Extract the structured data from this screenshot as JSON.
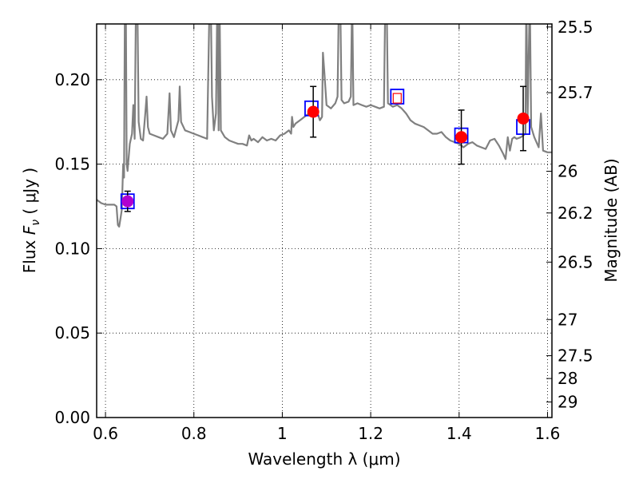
{
  "chart_data": {
    "type": "scatter",
    "title": "",
    "xlabel": "Wavelength  λ (μm)",
    "ylabel_prefix": "Flux  ",
    "ylabel_var": "F",
    "ylabel_sub": "ν",
    "ylabel_suffix": "  ( μJy )",
    "ylabel_right": "Magnitude (AB)",
    "xlim": [
      0.58,
      1.61
    ],
    "ylim": [
      0.0,
      0.233
    ],
    "x_ticks": [
      {
        "value": 0.6,
        "label": "0.6"
      },
      {
        "value": 0.8,
        "label": "0.8"
      },
      {
        "value": 1.0,
        "label": "1"
      },
      {
        "value": 1.2,
        "label": "1.2"
      },
      {
        "value": 1.4,
        "label": "1.4"
      },
      {
        "value": 1.6,
        "label": "1.6"
      }
    ],
    "y_ticks": [
      {
        "value": 0.0,
        "label": "0.00"
      },
      {
        "value": 0.05,
        "label": "0.05"
      },
      {
        "value": 0.1,
        "label": "0.10"
      },
      {
        "value": 0.15,
        "label": "0.15"
      },
      {
        "value": 0.2,
        "label": "0.20"
      }
    ],
    "right_ticks": [
      {
        "flux": 0.2312,
        "label": "25.5"
      },
      {
        "flux": 0.1923,
        "label": "25.7"
      },
      {
        "flux": 0.1458,
        "label": "26"
      },
      {
        "flux": 0.1211,
        "label": "26.2"
      },
      {
        "flux": 0.092,
        "label": "26.5"
      },
      {
        "flux": 0.058,
        "label": "27"
      },
      {
        "flux": 0.0366,
        "label": "27.5"
      },
      {
        "flux": 0.0231,
        "label": "28"
      },
      {
        "flux": 0.0092,
        "label": "29"
      }
    ],
    "grid": true,
    "colors": {
      "model": "#808080",
      "observed": "#ff0000",
      "observed_first": "#b000d0",
      "synthetic": "#0000ff",
      "errorbar": "#000000"
    },
    "series": [
      {
        "type": "line",
        "points": [
          [
            0.58,
            0.129
          ],
          [
            0.59,
            0.127
          ],
          [
            0.6,
            0.126
          ],
          [
            0.61,
            0.126
          ],
          [
            0.62,
            0.126
          ],
          [
            0.625,
            0.125
          ],
          [
            0.628,
            0.114
          ],
          [
            0.631,
            0.113
          ],
          [
            0.634,
            0.118
          ],
          [
            0.637,
            0.123
          ],
          [
            0.64,
            0.15
          ],
          [
            0.642,
            0.142
          ],
          [
            0.644,
            0.25
          ],
          [
            0.646,
            0.25
          ],
          [
            0.648,
            0.15
          ],
          [
            0.65,
            0.146
          ],
          [
            0.655,
            0.162
          ],
          [
            0.66,
            0.168
          ],
          [
            0.663,
            0.185
          ],
          [
            0.666,
            0.165
          ],
          [
            0.669,
            0.25
          ],
          [
            0.672,
            0.25
          ],
          [
            0.675,
            0.175
          ],
          [
            0.68,
            0.165
          ],
          [
            0.685,
            0.164
          ],
          [
            0.69,
            0.18
          ],
          [
            0.693,
            0.19
          ],
          [
            0.696,
            0.172
          ],
          [
            0.7,
            0.168
          ],
          [
            0.71,
            0.167
          ],
          [
            0.72,
            0.166
          ],
          [
            0.73,
            0.165
          ],
          [
            0.74,
            0.168
          ],
          [
            0.745,
            0.192
          ],
          [
            0.748,
            0.17
          ],
          [
            0.755,
            0.166
          ],
          [
            0.765,
            0.176
          ],
          [
            0.768,
            0.196
          ],
          [
            0.771,
            0.175
          ],
          [
            0.78,
            0.17
          ],
          [
            0.79,
            0.169
          ],
          [
            0.8,
            0.168
          ],
          [
            0.81,
            0.167
          ],
          [
            0.82,
            0.166
          ],
          [
            0.83,
            0.165
          ],
          [
            0.835,
            0.24
          ],
          [
            0.838,
            0.25
          ],
          [
            0.841,
            0.19
          ],
          [
            0.845,
            0.17
          ],
          [
            0.85,
            0.18
          ],
          [
            0.853,
            0.25
          ],
          [
            0.856,
            0.17
          ],
          [
            0.858,
            0.25
          ],
          [
            0.861,
            0.17
          ],
          [
            0.87,
            0.166
          ],
          [
            0.88,
            0.164
          ],
          [
            0.89,
            0.163
          ],
          [
            0.9,
            0.162
          ],
          [
            0.91,
            0.162
          ],
          [
            0.92,
            0.161
          ],
          [
            0.925,
            0.167
          ],
          [
            0.93,
            0.164
          ],
          [
            0.935,
            0.165
          ],
          [
            0.945,
            0.163
          ],
          [
            0.955,
            0.166
          ],
          [
            0.965,
            0.164
          ],
          [
            0.975,
            0.165
          ],
          [
            0.985,
            0.164
          ],
          [
            0.995,
            0.167
          ],
          [
            1.005,
            0.168
          ],
          [
            1.015,
            0.17
          ],
          [
            1.02,
            0.168
          ],
          [
            1.022,
            0.178
          ],
          [
            1.025,
            0.172
          ],
          [
            1.03,
            0.174
          ],
          [
            1.04,
            0.176
          ],
          [
            1.05,
            0.178
          ],
          [
            1.06,
            0.18
          ],
          [
            1.07,
            0.182
          ],
          [
            1.08,
            0.18
          ],
          [
            1.085,
            0.176
          ],
          [
            1.09,
            0.178
          ],
          [
            1.092,
            0.216
          ],
          [
            1.095,
            0.205
          ],
          [
            1.1,
            0.185
          ],
          [
            1.11,
            0.183
          ],
          [
            1.12,
            0.186
          ],
          [
            1.125,
            0.19
          ],
          [
            1.128,
            0.25
          ],
          [
            1.131,
            0.25
          ],
          [
            1.134,
            0.188
          ],
          [
            1.14,
            0.186
          ],
          [
            1.15,
            0.187
          ],
          [
            1.155,
            0.19
          ],
          [
            1.158,
            0.25
          ],
          [
            1.161,
            0.185
          ],
          [
            1.17,
            0.186
          ],
          [
            1.18,
            0.185
          ],
          [
            1.19,
            0.184
          ],
          [
            1.2,
            0.185
          ],
          [
            1.21,
            0.184
          ],
          [
            1.22,
            0.183
          ],
          [
            1.23,
            0.184
          ],
          [
            1.233,
            0.25
          ],
          [
            1.236,
            0.25
          ],
          [
            1.239,
            0.186
          ],
          [
            1.245,
            0.185
          ],
          [
            1.25,
            0.184
          ],
          [
            1.26,
            0.185
          ],
          [
            1.27,
            0.183
          ],
          [
            1.28,
            0.18
          ],
          [
            1.29,
            0.176
          ],
          [
            1.3,
            0.174
          ],
          [
            1.31,
            0.173
          ],
          [
            1.32,
            0.172
          ],
          [
            1.33,
            0.17
          ],
          [
            1.34,
            0.168
          ],
          [
            1.35,
            0.168
          ],
          [
            1.36,
            0.169
          ],
          [
            1.37,
            0.166
          ],
          [
            1.38,
            0.164
          ],
          [
            1.39,
            0.163
          ],
          [
            1.4,
            0.162
          ],
          [
            1.41,
            0.16
          ],
          [
            1.42,
            0.162
          ],
          [
            1.43,
            0.163
          ],
          [
            1.44,
            0.161
          ],
          [
            1.45,
            0.16
          ],
          [
            1.46,
            0.159
          ],
          [
            1.47,
            0.164
          ],
          [
            1.48,
            0.165
          ],
          [
            1.49,
            0.161
          ],
          [
            1.5,
            0.156
          ],
          [
            1.505,
            0.153
          ],
          [
            1.51,
            0.166
          ],
          [
            1.515,
            0.158
          ],
          [
            1.52,
            0.165
          ],
          [
            1.525,
            0.166
          ],
          [
            1.53,
            0.165
          ],
          [
            1.54,
            0.166
          ],
          [
            1.55,
            0.168
          ],
          [
            1.552,
            0.25
          ],
          [
            1.555,
            0.178
          ],
          [
            1.56,
            0.25
          ],
          [
            1.563,
            0.172
          ],
          [
            1.57,
            0.166
          ],
          [
            1.58,
            0.16
          ],
          [
            1.585,
            0.18
          ],
          [
            1.59,
            0.158
          ],
          [
            1.6,
            0.157
          ],
          [
            1.61,
            0.157
          ]
        ]
      },
      {
        "type": "scatter",
        "marker": "circle",
        "points": [
          {
            "x": 0.65,
            "y": 0.128,
            "err": 0.006
          },
          {
            "x": 1.07,
            "y": 0.181,
            "err": 0.015
          },
          {
            "x": 1.26,
            "y": 0.189,
            "err": 0.0
          },
          {
            "x": 1.405,
            "y": 0.166,
            "err": 0.016
          },
          {
            "x": 1.545,
            "y": 0.177,
            "err": 0.019
          }
        ]
      },
      {
        "type": "scatter",
        "marker": "square",
        "points": [
          {
            "x": 0.65,
            "y": 0.128
          },
          {
            "x": 1.066,
            "y": 0.183
          },
          {
            "x": 1.26,
            "y": 0.19
          },
          {
            "x": 1.405,
            "y": 0.167
          },
          {
            "x": 1.545,
            "y": 0.172
          }
        ]
      }
    ]
  }
}
